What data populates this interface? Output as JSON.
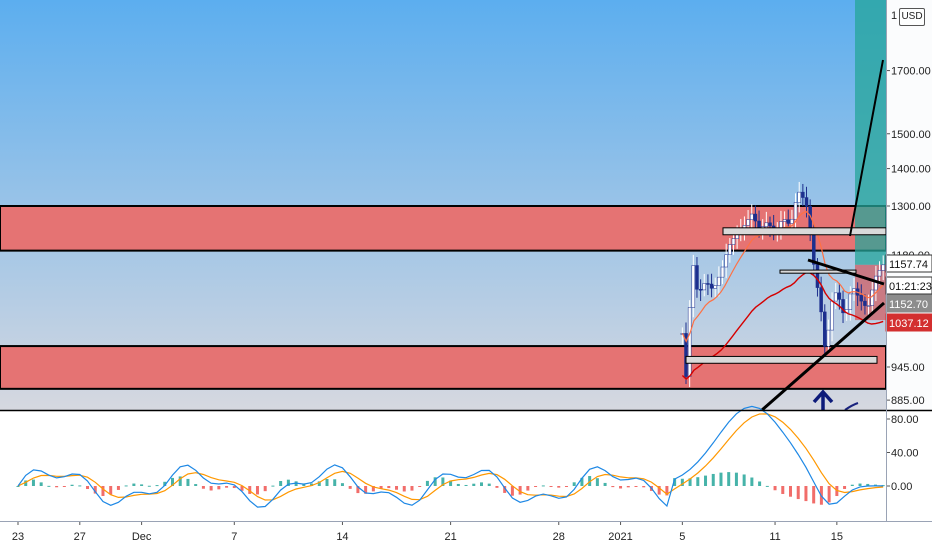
{
  "chart_data": {
    "type": "candlestick",
    "price_axis": {
      "ticks": [
        {
          "label": "1700.00",
          "value": 1700
        },
        {
          "label": "1500.00",
          "value": 1500
        },
        {
          "label": "1400.00",
          "value": 1400
        },
        {
          "label": "1300.00",
          "value": 1300
        },
        {
          "label": "1180.00",
          "value": 1180
        },
        {
          "label": "945.00",
          "value": 945
        },
        {
          "label": "885.00",
          "value": 885
        }
      ],
      "top_label_partial": "1",
      "currency_button": "USD"
    },
    "oscillator_axis": {
      "ticks": [
        {
          "label": "80.00",
          "value": 80
        },
        {
          "label": "40.00",
          "value": 40
        },
        {
          "label": "0.00",
          "value": 0
        }
      ]
    },
    "date_axis": {
      "labels": [
        {
          "label": "23",
          "day": 0
        },
        {
          "label": "27",
          "day": 4
        },
        {
          "label": "Dec",
          "day": 8
        },
        {
          "label": "7",
          "day": 14
        },
        {
          "label": "14",
          "day": 21
        },
        {
          "label": "21",
          "day": 28
        },
        {
          "label": "28",
          "day": 35
        },
        {
          "label": "2021",
          "day": 39
        },
        {
          "label": "5",
          "day": 43
        },
        {
          "label": "11",
          "day": 49
        },
        {
          "label": "15",
          "day": 53
        }
      ]
    },
    "price_tags": [
      {
        "label": "1157.74",
        "style": "outline"
      },
      {
        "label": "01:21:23",
        "style": "outline"
      },
      {
        "label": "1152.70",
        "style": "gray"
      },
      {
        "label": "1037.12",
        "style": "red"
      }
    ],
    "zones": [
      {
        "name": "upper-supply-zone",
        "from": 1190,
        "to": 1300
      },
      {
        "name": "lower-demand-zone",
        "from": 905,
        "to": 985
      }
    ],
    "colors": {
      "background_top": "#5caeef",
      "background_bottom": "#d6d8e0",
      "zone_fill": "#e57373",
      "candle_up": "#ffffff",
      "candle_down": "#1c2f8e",
      "ema_fast": "#ff7043",
      "ema_slow": "#d50000",
      "macd_line": "#1e88e5",
      "signal_line": "#ff9800",
      "hist_pos": "#26a69a",
      "hist_neg": "#ef5350",
      "target_box": "#26a69a",
      "stop_box": "#d84343"
    }
  }
}
